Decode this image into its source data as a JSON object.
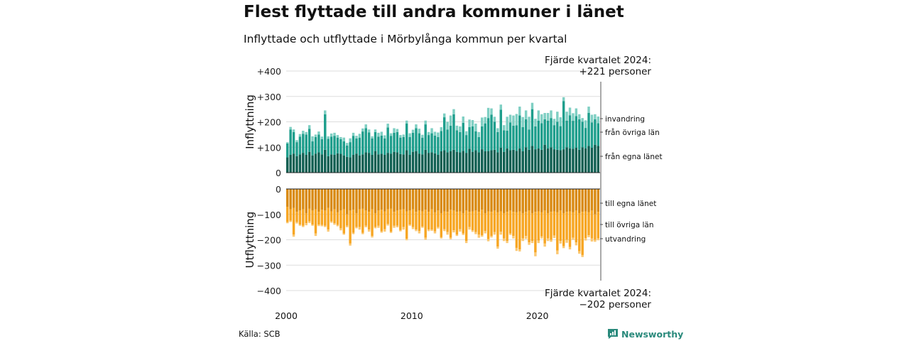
{
  "title": "Flest flyttade till andra kommuner i länet",
  "subtitle": "Inflyttade och utflyttade i Mörbylånga kommun per kvartal",
  "source": "Källa: SCB",
  "brand": {
    "name": "Newsworthy",
    "icon": "speech-bubble-chart-icon",
    "color": "#2a8a7c"
  },
  "annotations": {
    "in_line1": "Fjärde kvartalet 2024:",
    "in_line2": "+221 personer",
    "out_line1": "Fjärde kvartalet 2024:",
    "out_line2": "−202 personer"
  },
  "chart_data": [
    {
      "type": "bar",
      "stacked": true,
      "ylabel": "Inflyttning",
      "ylim": [
        0,
        400
      ],
      "yticks": [
        0,
        100,
        200,
        300,
        400
      ],
      "ytick_labels": [
        "0",
        "+100",
        "+200",
        "+300",
        "+400"
      ],
      "grid": true,
      "x_start": "2000 Q1",
      "x_end": "2024 Q4",
      "x_ticks": [
        2000,
        2010,
        2020
      ],
      "series": [
        {
          "name": "från egna länet",
          "color": "#0f5f52",
          "values": [
            60,
            70,
            75,
            65,
            72,
            78,
            70,
            82,
            68,
            75,
            80,
            72,
            90,
            65,
            72,
            70,
            76,
            74,
            68,
            62,
            60,
            70,
            75,
            68,
            72,
            80,
            78,
            70,
            85,
            72,
            74,
            70,
            78,
            75,
            82,
            80,
            73,
            72,
            88,
            70,
            82,
            85,
            75,
            72,
            90,
            78,
            80,
            76,
            70,
            84,
            88,
            80,
            85,
            90,
            82,
            80,
            86,
            78,
            94,
            82,
            88,
            80,
            92,
            84,
            85,
            88,
            90,
            80,
            98,
            82,
            95,
            88,
            90,
            86,
            95,
            84,
            100,
            90,
            105,
            92,
            95,
            90,
            110,
            95,
            100,
            92,
            90,
            88,
            92,
            100,
            96,
            94,
            98,
            90,
            100,
            96,
            105,
            98,
            110,
            105
          ]
        },
        {
          "name": "från övriga län",
          "color": "#1e9e8c",
          "values": [
            55,
            100,
            85,
            55,
            70,
            75,
            80,
            90,
            55,
            65,
            70,
            60,
            140,
            68,
            70,
            75,
            62,
            58,
            55,
            45,
            60,
            75,
            60,
            70,
            90,
            95,
            80,
            65,
            75,
            70,
            72,
            65,
            100,
            70,
            75,
            80,
            65,
            68,
            105,
            70,
            75,
            90,
            80,
            65,
            100,
            70,
            75,
            70,
            70,
            80,
            130,
            90,
            100,
            140,
            85,
            80,
            110,
            70,
            85,
            100,
            75,
            60,
            90,
            110,
            130,
            140,
            110,
            80,
            150,
            85,
            70,
            110,
            95,
            100,
            130,
            95,
            110,
            80,
            145,
            90,
            110,
            105,
            100,
            110,
            115,
            95,
            110,
            95,
            190,
            105,
            130,
            110,
            125,
            120,
            100,
            80,
            130,
            100,
            100,
            90
          ]
        },
        {
          "name": "invandring",
          "color": "#7fcfc3",
          "values": [
            5,
            10,
            10,
            8,
            10,
            12,
            10,
            15,
            20,
            10,
            12,
            10,
            15,
            10,
            12,
            12,
            10,
            8,
            15,
            10,
            15,
            12,
            10,
            15,
            12,
            15,
            12,
            8,
            10,
            15,
            15,
            12,
            15,
            10,
            18,
            12,
            10,
            10,
            12,
            15,
            12,
            15,
            18,
            12,
            15,
            12,
            20,
            15,
            18,
            15,
            15,
            30,
            40,
            20,
            18,
            22,
            25,
            15,
            30,
            25,
            30,
            20,
            35,
            25,
            40,
            25,
            20,
            15,
            20,
            20,
            55,
            30,
            40,
            45,
            35,
            40,
            35,
            50,
            25,
            30,
            40,
            35,
            25,
            30,
            30,
            25,
            40,
            35,
            15,
            35,
            30,
            30,
            30,
            20,
            15,
            30,
            25,
            30,
            20,
            26
          ]
        }
      ]
    },
    {
      "type": "bar",
      "stacked": true,
      "ylabel": "Utflyttning",
      "ylim": [
        -400,
        0
      ],
      "yticks": [
        0,
        -100,
        -200,
        -300,
        -400
      ],
      "ytick_labels": [
        "0",
        "−100",
        "−200",
        "−300",
        "−400"
      ],
      "grid": true,
      "x_start": "2000 Q1",
      "x_end": "2024 Q4",
      "x_ticks": [
        2000,
        2010,
        2020
      ],
      "series": [
        {
          "name": "till egna länet",
          "color": "#d98a12",
          "values": [
            -70,
            -80,
            -75,
            -90,
            -85,
            -80,
            -95,
            -78,
            -85,
            -80,
            -90,
            -82,
            -85,
            -75,
            -88,
            -80,
            -92,
            -85,
            -80,
            -100,
            -85,
            -82,
            -95,
            -80,
            -78,
            -85,
            -90,
            -80,
            -95,
            -85,
            -82,
            -88,
            -80,
            -78,
            -90,
            -85,
            -82,
            -80,
            -88,
            -85,
            -80,
            -90,
            -85,
            -88,
            -82,
            -90,
            -80,
            -92,
            -85,
            -95,
            -88,
            -90,
            -82,
            -85,
            -90,
            -88,
            -95,
            -85,
            -90,
            -88,
            -85,
            -90,
            -82,
            -95,
            -88,
            -90,
            -85,
            -92,
            -88,
            -95,
            -90,
            -85,
            -90,
            -92,
            -88,
            -95,
            -90,
            -85,
            -95,
            -90,
            -88,
            -92,
            -85,
            -95,
            -90,
            -88,
            -92,
            -85,
            -95,
            -90,
            -88,
            -92,
            -85,
            -95,
            -90,
            -88,
            -92,
            -85,
            -100,
            -90
          ]
        },
        {
          "name": "till övriga län",
          "color": "#f7a623",
          "values": [
            -60,
            -45,
            -105,
            -40,
            -55,
            -65,
            -40,
            -50,
            -55,
            -95,
            -50,
            -60,
            -60,
            -85,
            -40,
            -55,
            -50,
            -70,
            -95,
            -45,
            -130,
            -90,
            -55,
            -70,
            -95,
            -60,
            -70,
            -105,
            -55,
            -60,
            -85,
            -70,
            -58,
            -90,
            -55,
            -60,
            -80,
            -70,
            -108,
            -55,
            -70,
            -70,
            -80,
            -60,
            -110,
            -70,
            -80,
            -75,
            -65,
            -95,
            -70,
            -80,
            -110,
            -78,
            -90,
            -70,
            -80,
            -120,
            -60,
            -75,
            -85,
            -90,
            -100,
            -70,
            -110,
            -95,
            -85,
            -135,
            -80,
            -100,
            -115,
            -90,
            -95,
            -140,
            -150,
            -100,
            -95,
            -125,
            -110,
            -160,
            -115,
            -95,
            -130,
            -100,
            -110,
            -95,
            -150,
            -120,
            -130,
            -110,
            -140,
            -100,
            -125,
            -150,
            -170,
            -105,
            -90,
            -110,
            -100,
            -105
          ]
        },
        {
          "name": "utvandring",
          "color": "#fbc873",
          "values": [
            -5,
            -5,
            -8,
            -6,
            -5,
            -5,
            -8,
            -6,
            -5,
            -10,
            -6,
            -5,
            -5,
            -8,
            -5,
            -6,
            -5,
            -8,
            -5,
            -6,
            -8,
            -6,
            -5,
            -10,
            -5,
            -6,
            -8,
            -6,
            -5,
            -8,
            -5,
            -10,
            -6,
            -5,
            -8,
            -6,
            -5,
            -10,
            -6,
            -5,
            -8,
            -6,
            -10,
            -5,
            -8,
            -6,
            -5,
            -8,
            -6,
            -5,
            -8,
            -10,
            -6,
            -8,
            -5,
            -10,
            -6,
            -8,
            -10,
            -6,
            -8,
            -12,
            -6,
            -10,
            -8,
            -6,
            -10,
            -8,
            -12,
            -10,
            -8,
            -6,
            -10,
            -12,
            -8,
            -10,
            -12,
            -10,
            -8,
            -15,
            -10,
            -8,
            -12,
            -10,
            -8,
            -10,
            -15,
            -10,
            -8,
            -12,
            -10,
            -8,
            -12,
            -10,
            -8,
            -10,
            -8,
            -12,
            -8,
            -7
          ]
        }
      ]
    }
  ]
}
